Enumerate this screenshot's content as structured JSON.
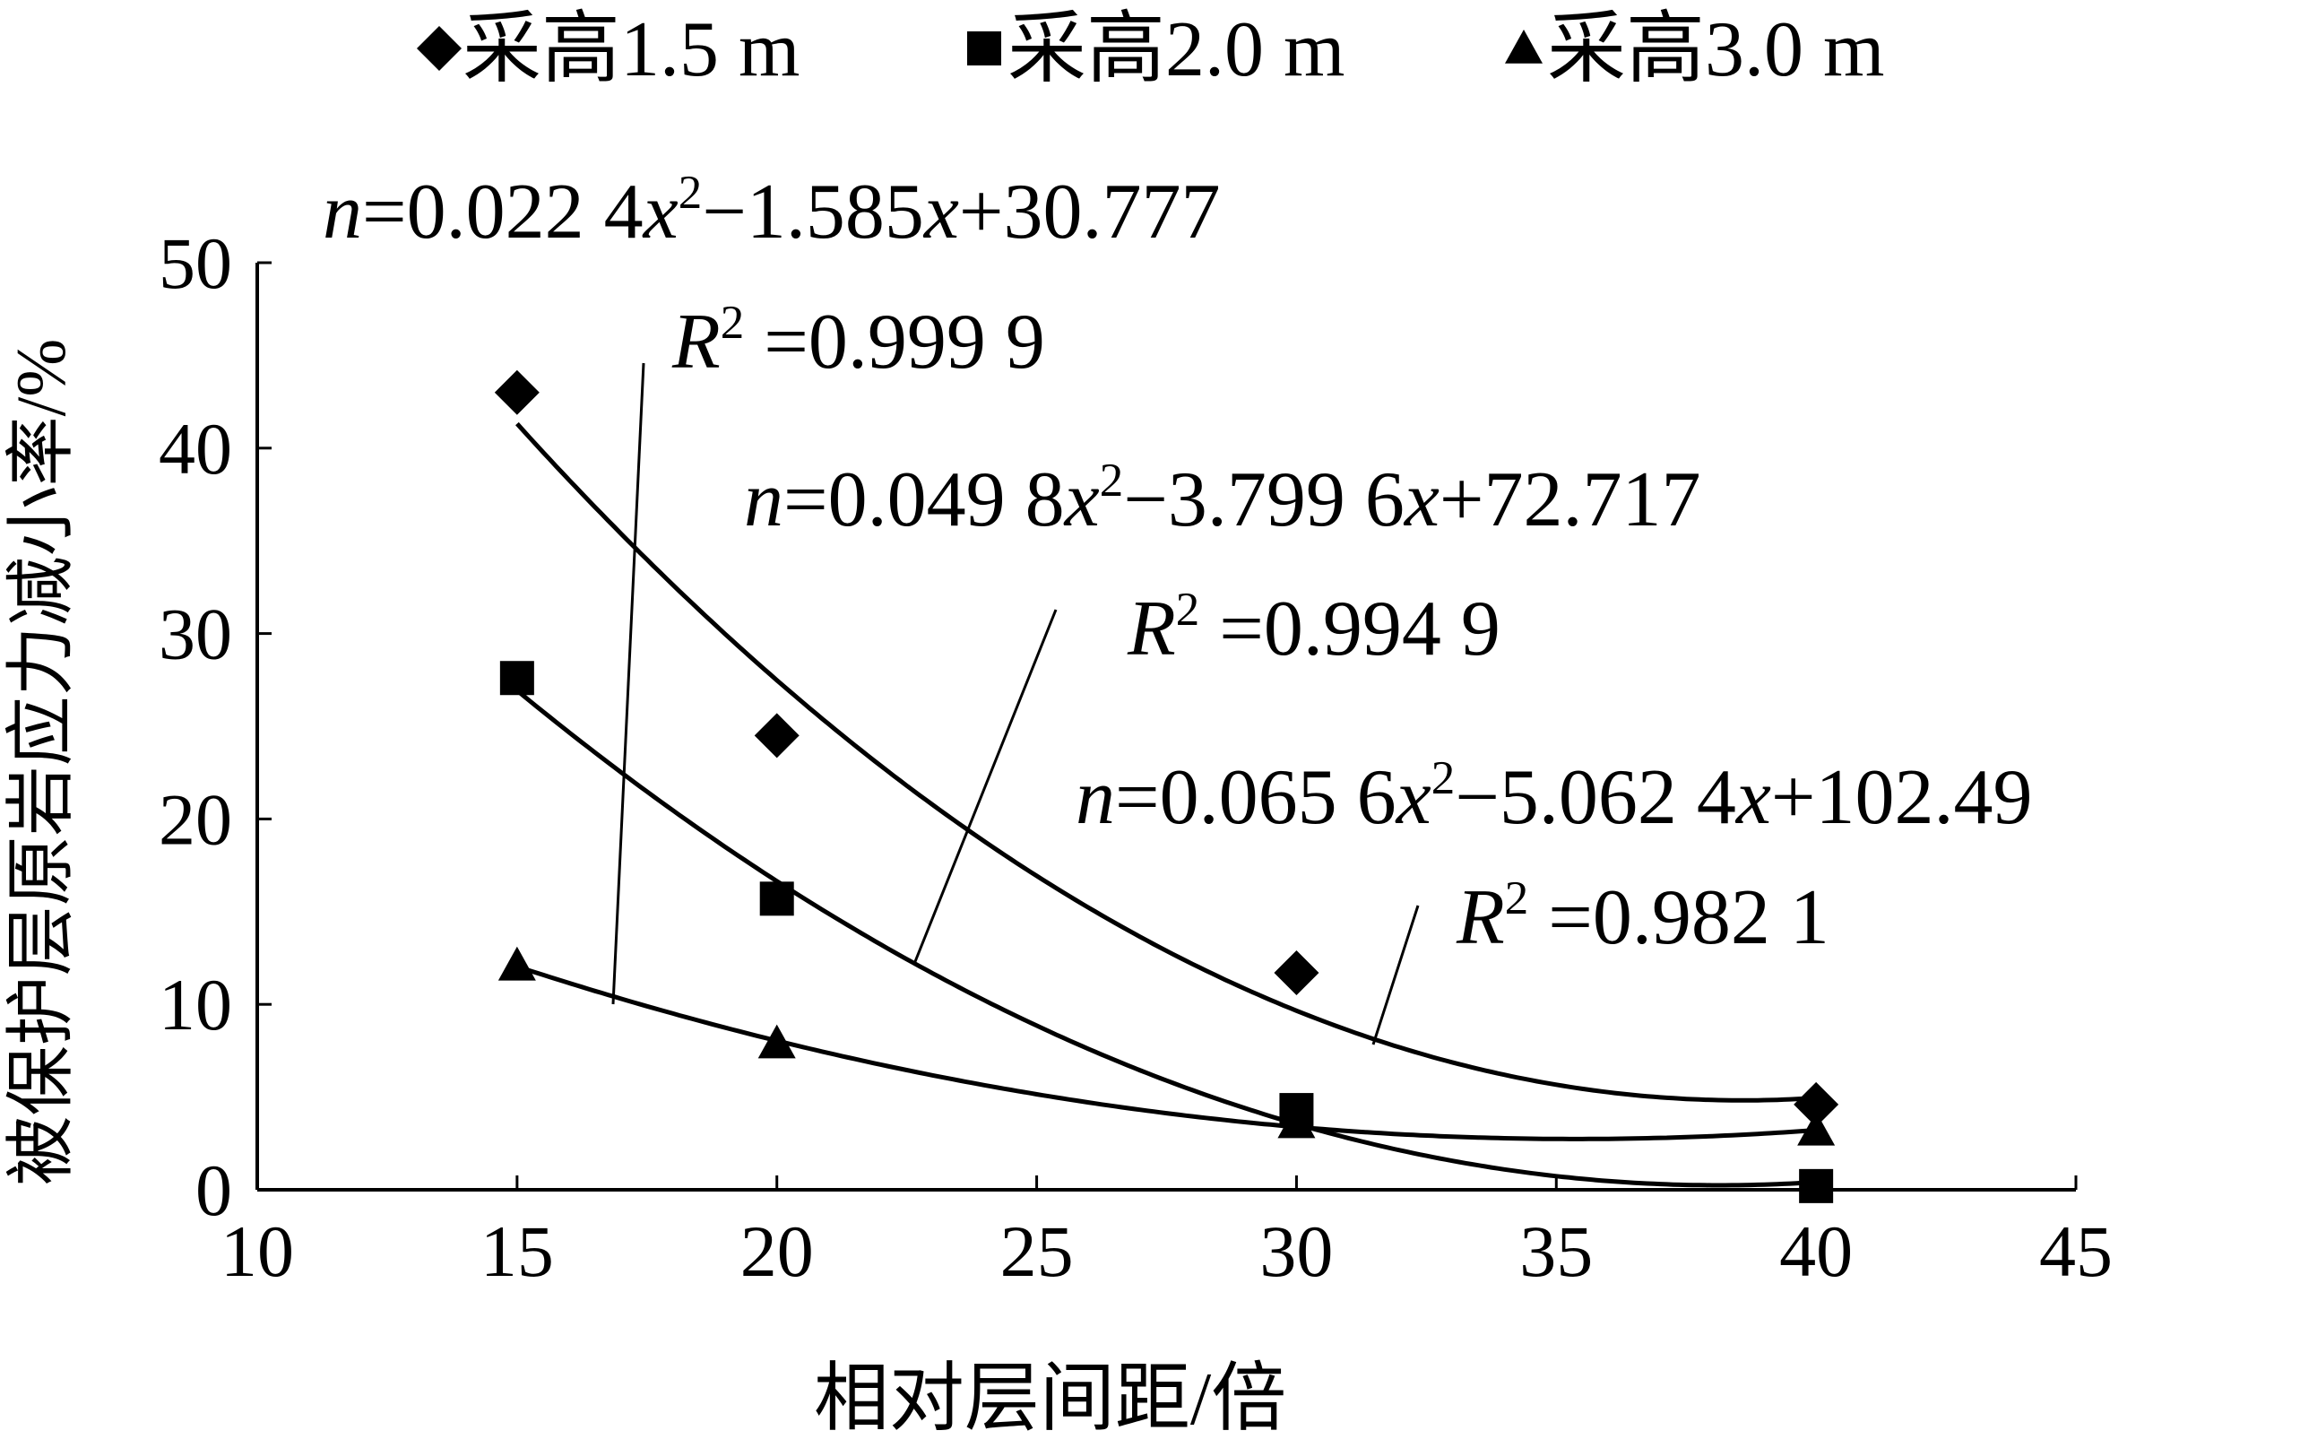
{
  "chart_data": {
    "type": "scatter",
    "xlabel": "相对层间距/倍",
    "ylabel": "被保护层原岩应力减小率/%",
    "xlim": [
      10,
      45
    ],
    "ylim": [
      0,
      50
    ],
    "xticks": [
      10,
      15,
      20,
      25,
      30,
      35,
      40,
      45
    ],
    "yticks": [
      0,
      10,
      20,
      30,
      40,
      50
    ],
    "grid": false,
    "legend_position": "top",
    "x": [
      15,
      20,
      30,
      40
    ],
    "series": [
      {
        "name": "采高1.5 m",
        "marker": "diamond",
        "values": [
          43.0,
          24.5,
          11.7,
          4.6
        ],
        "fit": [
          0.0656,
          -5.0624,
          102.49
        ],
        "equation": "n=0.065 6x²−5.062 4x+102.49",
        "r2": "R² =0.982 1"
      },
      {
        "name": "采高2.0 m",
        "marker": "square",
        "values": [
          27.6,
          15.7,
          4.3,
          0.2
        ],
        "fit": [
          0.0498,
          -3.7996,
          72.717
        ],
        "equation": "n=0.049 8x²−3.799 6x+72.717",
        "r2": "R² =0.994 9"
      },
      {
        "name": "采高3.0 m",
        "marker": "triangle",
        "values": [
          12.1,
          7.9,
          3.6,
          3.2
        ],
        "fit": [
          0.0224,
          -1.585,
          30.777
        ],
        "equation": "n=0.022 4x²−1.585x+30.777",
        "r2": "R² =0.999 9"
      }
    ],
    "colors": {
      "ink": "#000000",
      "background": "#ffffff"
    }
  }
}
